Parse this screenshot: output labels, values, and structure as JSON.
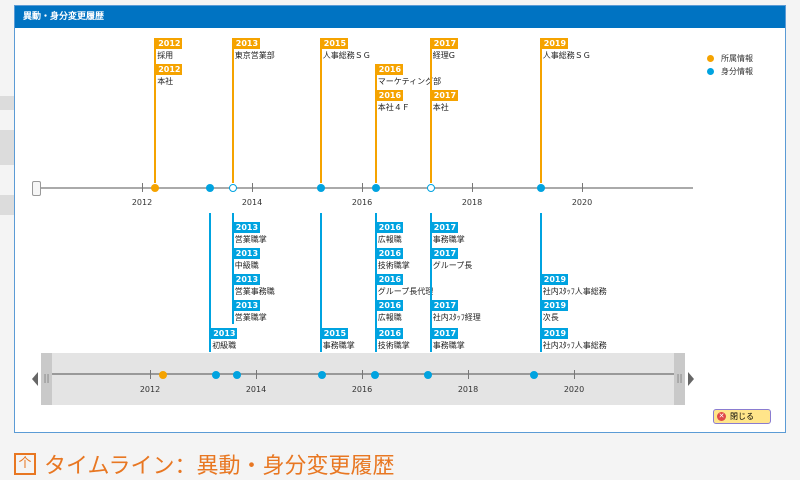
{
  "dialog": {
    "title": "異動・身分変更履歴",
    "close_label": "閉じる"
  },
  "caption": {
    "icon": "timeline-icon",
    "text": "タイムライン：異動・身分変更履歴"
  },
  "legend": [
    {
      "label": "所属情報",
      "color": "#f5a300"
    },
    {
      "label": "身分情報",
      "color": "#00a3e0"
    }
  ],
  "axis": {
    "ticks": [
      "2012",
      "2014",
      "2016",
      "2018",
      "2020"
    ],
    "tick_years": [
      2012,
      2014,
      2016,
      2018,
      2020
    ]
  },
  "affiliation_events": [
    {
      "t": 2012.24,
      "marker": "filled",
      "entries": [
        {
          "year": "2012",
          "label": "採用"
        },
        {
          "year": "2012",
          "label": "本社"
        }
      ]
    },
    {
      "t": 2013.65,
      "marker": "hollow",
      "entries": [
        {
          "year": "2013",
          "label": "東京営業部"
        }
      ]
    },
    {
      "t": 2015.25,
      "marker": "filled-blue",
      "entries": [
        {
          "year": "2015",
          "label": "人事総務ＳＧ"
        }
      ]
    },
    {
      "t": 2016.25,
      "marker": "filled-blue",
      "offset": 1,
      "entries": [
        {
          "year": "2016",
          "label": "マーケティング部"
        },
        {
          "year": "2016",
          "label": "本社４Ｆ"
        }
      ]
    },
    {
      "t": 2017.25,
      "marker": "hollow",
      "entries": [
        {
          "year": "2017",
          "label": "経理G"
        },
        {
          "year": "2017",
          "label": "本社"
        }
      ],
      "gap": true
    },
    {
      "t": 2019.25,
      "marker": "filled-blue",
      "entries": [
        {
          "year": "2019",
          "label": "人事総務ＳＧ"
        }
      ]
    }
  ],
  "status_events": [
    {
      "t": 2013.24,
      "slots": [
        4
      ],
      "entries": [
        {
          "year": "2013",
          "label": "初級職"
        }
      ]
    },
    {
      "t": 2013.65,
      "slots": [
        0,
        1,
        2,
        3
      ],
      "entries": [
        {
          "year": "2013",
          "label": "営業職掌"
        },
        {
          "year": "2013",
          "label": "中級職"
        },
        {
          "year": "2013",
          "label": "営業事務職"
        },
        {
          "year": "2013",
          "label": "営業職掌"
        }
      ]
    },
    {
      "t": 2015.25,
      "slots": [
        4
      ],
      "entries": [
        {
          "year": "2015",
          "label": "事務職掌"
        }
      ]
    },
    {
      "t": 2016.25,
      "slots": [
        0,
        1,
        2,
        3,
        4
      ],
      "entries": [
        {
          "year": "2016",
          "label": "広報職"
        },
        {
          "year": "2016",
          "label": "技術職掌"
        },
        {
          "year": "2016",
          "label": "グループ長代理"
        },
        {
          "year": "2016",
          "label": "広報職"
        },
        {
          "year": "2016",
          "label": "技術職掌"
        }
      ]
    },
    {
      "t": 2017.25,
      "slots": [
        0,
        1,
        3,
        4
      ],
      "entries": [
        {
          "year": "2017",
          "label": "事務職掌"
        },
        {
          "year": "2017",
          "label": "グループ長"
        },
        {
          "year": "2017",
          "label": "社内ｽﾀｯﾌ経理"
        },
        {
          "year": "2017",
          "label": "事務職掌"
        }
      ]
    },
    {
      "t": 2019.25,
      "slots": [
        2,
        3,
        4
      ],
      "entries": [
        {
          "year": "2019",
          "label": "社内ｽﾀｯﾌ人事総務"
        },
        {
          "year": "2019",
          "label": "次長"
        },
        {
          "year": "2019",
          "label": "社内ｽﾀｯﾌ人事総務"
        }
      ]
    }
  ],
  "navigator": {
    "points": [
      {
        "t": 2012.24,
        "type": "affiliation"
      },
      {
        "t": 2013.24,
        "type": "status"
      },
      {
        "t": 2013.65,
        "type": "status"
      },
      {
        "t": 2015.25,
        "type": "status"
      },
      {
        "t": 2016.25,
        "type": "status"
      },
      {
        "t": 2017.25,
        "type": "status"
      },
      {
        "t": 2019.25,
        "type": "status"
      }
    ]
  }
}
